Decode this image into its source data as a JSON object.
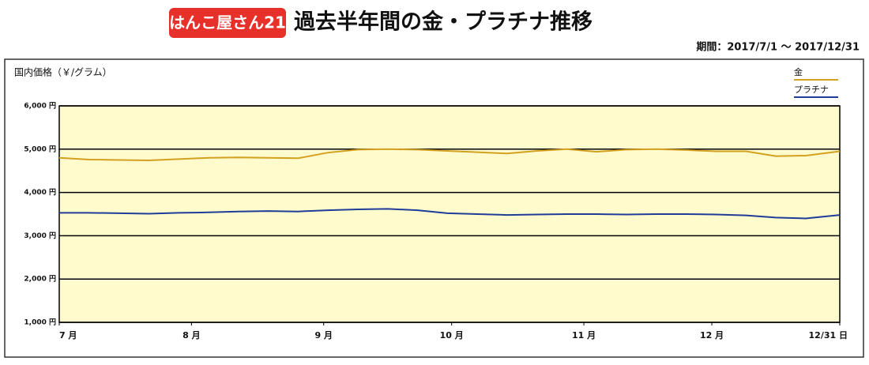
{
  "logo": "はんこ屋さん21",
  "chart_data": {
    "type": "line",
    "title": "過去半年間の金・プラチナ推移",
    "subtitle": "期間：2017/7/1 〜 2017/12/31",
    "y_label": "国内価格（￥/グラム）",
    "x": [
      0,
      7,
      14,
      21,
      28,
      35,
      42,
      49,
      56,
      63,
      70,
      77,
      84,
      91,
      98,
      105,
      112,
      119,
      126,
      133,
      140,
      147,
      154,
      161,
      168,
      175,
      183
    ],
    "series": [
      {
        "name": "金",
        "color": "#d4a020",
        "values": [
          4800,
          4760,
          4750,
          4740,
          4770,
          4800,
          4810,
          4800,
          4790,
          4920,
          4990,
          5000,
          4990,
          4960,
          4930,
          4900,
          4960,
          5000,
          4940,
          4990,
          5000,
          4980,
          4950,
          4950,
          4840,
          4850,
          4950
        ]
      },
      {
        "name": "プラチナ",
        "color": "#1f3c99",
        "values": [
          3530,
          3530,
          3520,
          3510,
          3530,
          3540,
          3560,
          3570,
          3560,
          3590,
          3610,
          3620,
          3590,
          3520,
          3500,
          3480,
          3490,
          3500,
          3500,
          3490,
          3500,
          3500,
          3490,
          3470,
          3420,
          3400,
          3480
        ]
      }
    ],
    "xlim": [
      0,
      183
    ],
    "xticks": [
      {
        "value": 0,
        "label": "7 月"
      },
      {
        "value": 31,
        "label": "8 月"
      },
      {
        "value": 62,
        "label": "9 月"
      },
      {
        "value": 92,
        "label": "10 月"
      },
      {
        "value": 123,
        "label": "11 月"
      },
      {
        "value": 153,
        "label": "12 月"
      },
      {
        "value": 183,
        "label": "12/31 日"
      }
    ],
    "ylim": [
      1000,
      6000
    ],
    "yticks": [
      {
        "value": 1000,
        "label": "1,000 円"
      },
      {
        "value": 2000,
        "label": "2,000 円"
      },
      {
        "value": 3000,
        "label": "3,000 円"
      },
      {
        "value": 4000,
        "label": "4,000 円"
      },
      {
        "value": 5000,
        "label": "5,000 円"
      },
      {
        "value": 6000,
        "label": "6,000 円"
      }
    ],
    "grid": true,
    "legend": "top-right",
    "background": "#fffbcc"
  }
}
